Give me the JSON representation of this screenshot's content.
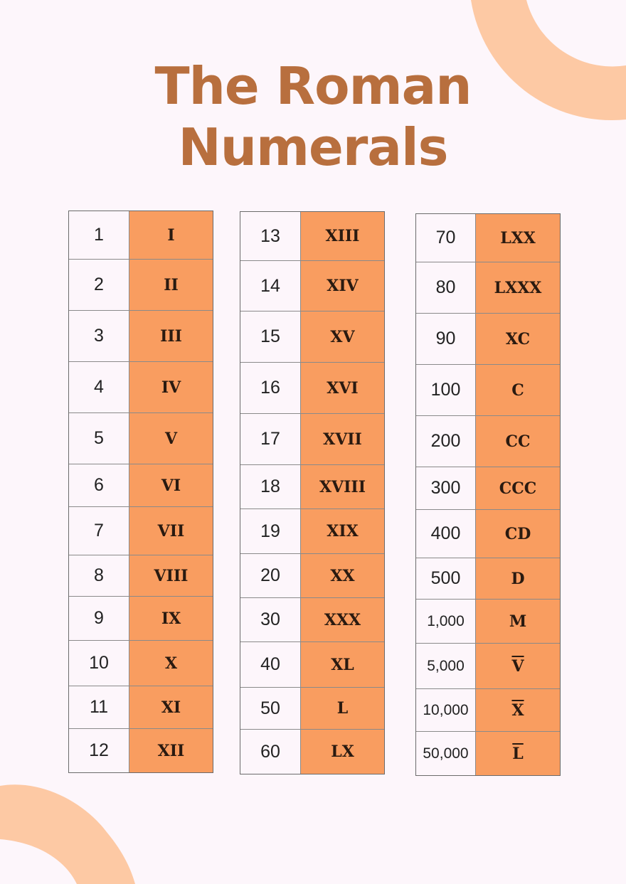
{
  "title_line1": "The Roman",
  "title_line2": "Numerals",
  "colors": {
    "title": "#b86f3e",
    "roman_cell": "#f99d60",
    "decoration": "#fdc9a4",
    "background": "#fdf6fb"
  },
  "tables": [
    {
      "rows": [
        {
          "number": "1",
          "roman": "I"
        },
        {
          "number": "2",
          "roman": "II"
        },
        {
          "number": "3",
          "roman": "III"
        },
        {
          "number": "4",
          "roman": "IV"
        },
        {
          "number": "5",
          "roman": "V"
        },
        {
          "number": "6",
          "roman": "VI"
        },
        {
          "number": "7",
          "roman": "VII"
        },
        {
          "number": "8",
          "roman": "VIII"
        },
        {
          "number": "9",
          "roman": "IX"
        },
        {
          "number": "10",
          "roman": "X"
        },
        {
          "number": "11",
          "roman": "XI"
        },
        {
          "number": "12",
          "roman": "XII"
        }
      ]
    },
    {
      "rows": [
        {
          "number": "13",
          "roman": "XIII"
        },
        {
          "number": "14",
          "roman": "XIV"
        },
        {
          "number": "15",
          "roman": "XV"
        },
        {
          "number": "16",
          "roman": "XVI"
        },
        {
          "number": "17",
          "roman": "XVII"
        },
        {
          "number": "18",
          "roman": "XVIII"
        },
        {
          "number": "19",
          "roman": "XIX"
        },
        {
          "number": "20",
          "roman": "XX"
        },
        {
          "number": "30",
          "roman": "XXX"
        },
        {
          "number": "40",
          "roman": "XL"
        },
        {
          "number": "50",
          "roman": "L"
        },
        {
          "number": "60",
          "roman": "LX"
        }
      ]
    },
    {
      "rows": [
        {
          "number": "70",
          "roman": "LXX"
        },
        {
          "number": "80",
          "roman": "LXXX"
        },
        {
          "number": "90",
          "roman": "XC"
        },
        {
          "number": "100",
          "roman": "C"
        },
        {
          "number": "200",
          "roman": "CC"
        },
        {
          "number": "300",
          "roman": "CCC"
        },
        {
          "number": "400",
          "roman": "CD"
        },
        {
          "number": "500",
          "roman": "D"
        },
        {
          "number": "1,000",
          "roman": "M"
        },
        {
          "number": "5,000",
          "roman": "V",
          "overline": true
        },
        {
          "number": "10,000",
          "roman": "X",
          "overline": true
        },
        {
          "number": "50,000",
          "roman": "L",
          "overline": true
        }
      ]
    }
  ]
}
